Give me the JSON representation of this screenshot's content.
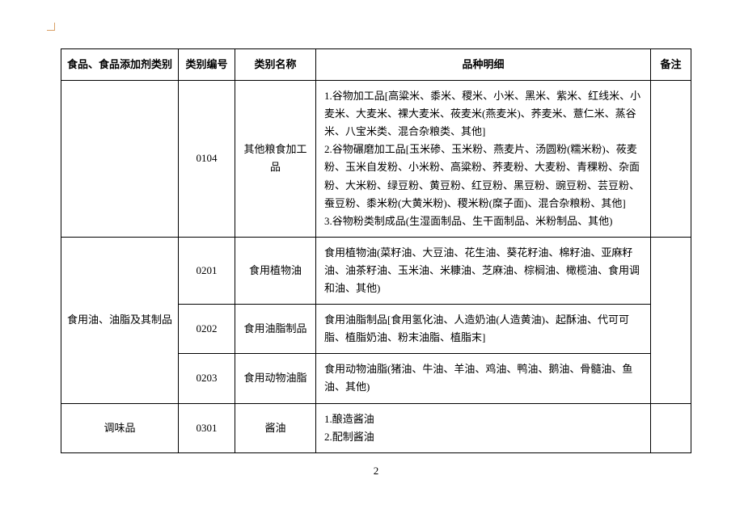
{
  "headers": {
    "category": "食品、食品添加剂类别",
    "code": "类别编号",
    "name": "类别名称",
    "detail": "品种明细",
    "note": "备注"
  },
  "rows": [
    {
      "category": "",
      "code": "0104",
      "name": "其他粮食加工品",
      "detail": "1.谷物加工品[高粱米、黍米、稷米、小米、黑米、紫米、红线米、小麦米、大麦米、裸大麦米、莜麦米(燕麦米)、荞麦米、薏仁米、蒸谷米、八宝米类、混合杂粮类、其他]\n2.谷物碾磨加工品[玉米碜、玉米粉、燕麦片、汤圆粉(糯米粉)、莜麦粉、玉米自发粉、小米粉、高粱粉、荞麦粉、大麦粉、青稞粉、杂面粉、大米粉、绿豆粉、黄豆粉、红豆粉、黑豆粉、豌豆粉、芸豆粉、蚕豆粉、黍米粉(大黄米粉)、稷米粉(糜子面)、混合杂粮粉、其他]\n3.谷物粉类制成品(生湿面制品、生干面制品、米粉制品、其他)",
      "note": ""
    },
    {
      "category": "食用油、油脂及其制品",
      "code": "0201",
      "name": "食用植物油",
      "detail": "食用植物油(菜籽油、大豆油、花生油、葵花籽油、棉籽油、亚麻籽油、油茶籽油、玉米油、米糠油、芝麻油、棕榈油、橄榄油、食用调和油、其他)",
      "note": ""
    },
    {
      "category": "",
      "code": "0202",
      "name": "食用油脂制品",
      "detail": "食用油脂制品[食用氢化油、人造奶油(人造黄油)、起酥油、代可可脂、植脂奶油、粉末油脂、植脂末]",
      "note": ""
    },
    {
      "category": "",
      "code": "0203",
      "name": "食用动物油脂",
      "detail": "食用动物油脂(猪油、牛油、羊油、鸡油、鸭油、鹅油、骨髓油、鱼油、其他)",
      "note": ""
    },
    {
      "category": "调味品",
      "code": "0301",
      "name": "酱油",
      "detail": "1.酿造酱油\n2.配制酱油",
      "note": ""
    }
  ],
  "rowspans": {
    "r0_category": 1,
    "r1_category": 3
  },
  "page_number": "2"
}
